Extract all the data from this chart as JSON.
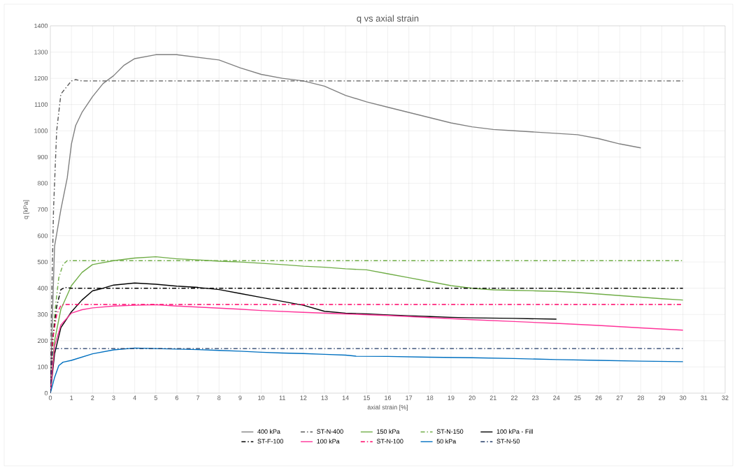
{
  "chart_data": {
    "type": "line",
    "title": "q vs axial strain",
    "xlabel": "axial strain [%]",
    "ylabel": "q [kPa]",
    "xlim": [
      0,
      32
    ],
    "xticks": [
      0,
      1,
      2,
      3,
      4,
      5,
      6,
      7,
      8,
      9,
      10,
      11,
      12,
      13,
      14,
      15,
      16,
      17,
      18,
      19,
      20,
      21,
      22,
      23,
      24,
      25,
      26,
      27,
      28,
      29,
      30,
      31,
      32
    ],
    "ylim": [
      0,
      1400
    ],
    "yticks": [
      0,
      100,
      200,
      300,
      400,
      500,
      600,
      700,
      800,
      900,
      1000,
      1100,
      1200,
      1300,
      1400
    ],
    "grid": true,
    "legend": "bottom",
    "marker": "none",
    "series": [
      {
        "name": "400 kPa",
        "color": "#808080",
        "line_style": "solid",
        "x": [
          0,
          0.1,
          0.2,
          0.5,
          0.8,
          1,
          1.2,
          1.5,
          2,
          2.5,
          3,
          3.5,
          4,
          5,
          6,
          7,
          8,
          9,
          10,
          11,
          12,
          13,
          14,
          15,
          16,
          17,
          18,
          19,
          20,
          21,
          22,
          23,
          24,
          25,
          26,
          27,
          28
        ],
        "values": [
          0,
          300,
          560,
          700,
          820,
          950,
          1020,
          1070,
          1130,
          1180,
          1210,
          1250,
          1275,
          1290,
          1290,
          1280,
          1270,
          1240,
          1215,
          1200,
          1190,
          1170,
          1135,
          1110,
          1090,
          1070,
          1050,
          1030,
          1015,
          1005,
          1000,
          995,
          990,
          985,
          970,
          950,
          935
        ]
      },
      {
        "name": "ST-N-400",
        "color": "#595959",
        "line_style": "dashdot",
        "x": [
          0,
          0.05,
          0.15,
          0.3,
          0.5,
          0.8,
          1,
          1.2,
          1.5,
          30
        ],
        "values": [
          0,
          300,
          700,
          1000,
          1140,
          1170,
          1190,
          1195,
          1190,
          1190
        ]
      },
      {
        "name": "150 kPa",
        "color": "#70ad47",
        "line_style": "solid",
        "x": [
          0,
          0.2,
          0.5,
          1,
          1.5,
          2,
          3,
          4,
          5,
          6,
          7,
          8,
          9,
          10,
          11,
          12,
          13,
          14,
          15,
          16,
          17,
          18,
          19,
          20,
          21,
          22,
          23,
          24,
          25,
          26,
          27,
          28,
          29,
          30
        ],
        "values": [
          0,
          200,
          320,
          410,
          460,
          490,
          505,
          515,
          520,
          512,
          508,
          503,
          500,
          495,
          490,
          484,
          480,
          474,
          470,
          455,
          440,
          425,
          410,
          400,
          394,
          392,
          390,
          388,
          384,
          378,
          372,
          366,
          360,
          355
        ]
      },
      {
        "name": "ST-N-150",
        "color": "#70ad47",
        "line_style": "dashdot",
        "x": [
          0,
          0.2,
          0.4,
          0.6,
          0.8,
          30
        ],
        "values": [
          0,
          300,
          440,
          490,
          505,
          505
        ]
      },
      {
        "name": "100 kPa - Fill",
        "color": "#000000",
        "line_style": "solid",
        "x": [
          0,
          0.2,
          0.5,
          1,
          1.5,
          2,
          2.5,
          3,
          4,
          5,
          6,
          7,
          8,
          9,
          10,
          11,
          12,
          13,
          14,
          15,
          16,
          17,
          18,
          19,
          20,
          22,
          24
        ],
        "values": [
          0,
          150,
          250,
          310,
          355,
          390,
          400,
          412,
          420,
          415,
          408,
          403,
          395,
          380,
          365,
          350,
          335,
          312,
          305,
          302,
          298,
          295,
          292,
          289,
          287,
          285,
          282
        ]
      },
      {
        "name": "ST-F-100",
        "color": "#000000",
        "line_style": "dashdot",
        "x": [
          0,
          0.1,
          0.3,
          0.5,
          0.7,
          1,
          30
        ],
        "values": [
          0,
          200,
          330,
          395,
          403,
          400,
          400
        ]
      },
      {
        "name": "100 kPa",
        "color": "#ff3399",
        "line_style": "solid",
        "x": [
          0,
          0.2,
          0.5,
          1,
          1.5,
          2,
          3,
          4,
          5,
          6,
          7,
          8,
          9,
          10,
          12,
          14,
          16,
          18,
          20,
          22,
          24,
          26,
          28,
          30
        ],
        "values": [
          0,
          180,
          260,
          305,
          318,
          325,
          332,
          335,
          337,
          332,
          328,
          324,
          320,
          315,
          308,
          302,
          296,
          288,
          280,
          273,
          266,
          258,
          249,
          240
        ]
      },
      {
        "name": "ST-N-100",
        "color": "#ff0066",
        "line_style": "dashdot",
        "x": [
          0,
          0.1,
          0.3,
          0.5,
          0.7,
          30
        ],
        "values": [
          0,
          200,
          300,
          335,
          338,
          338
        ]
      },
      {
        "name": "50 kPa",
        "color": "#0070c0",
        "line_style": "solid",
        "x": [
          0,
          0.2,
          0.4,
          0.6,
          1,
          2,
          3,
          4,
          5,
          6,
          7,
          8,
          9,
          10,
          11,
          12,
          13,
          14,
          14.5,
          16,
          18,
          20,
          22,
          24,
          26,
          28,
          30
        ],
        "values": [
          0,
          60,
          105,
          118,
          125,
          150,
          165,
          172,
          170,
          168,
          166,
          163,
          160,
          156,
          153,
          151,
          148,
          145,
          141,
          140,
          137,
          135,
          132,
          128,
          125,
          122,
          120
        ]
      },
      {
        "name": "ST-N-50",
        "color": "#1f3864",
        "line_style": "dashdot",
        "x": [
          0,
          0.1,
          30
        ],
        "values": [
          0,
          170,
          170
        ]
      }
    ]
  }
}
